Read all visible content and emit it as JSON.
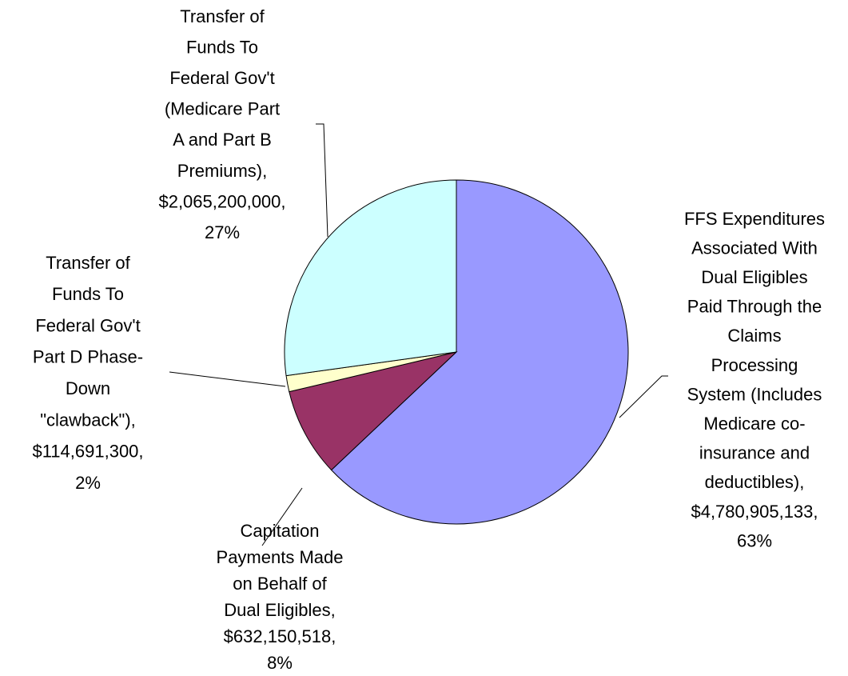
{
  "chart_data": {
    "type": "pie",
    "categories": [
      [
        "FFS Expenditures",
        "Associated With",
        "Dual Eligibles",
        "Paid Through the",
        "Claims",
        "Processing",
        "System (Includes",
        "Medicare co-",
        "insurance and",
        "deductibles),"
      ],
      [
        "Capitation",
        "Payments Made",
        "on Behalf of",
        "Dual Eligibles,"
      ],
      [
        "Transfer of",
        "Funds To",
        "Federal Gov't",
        "Part D Phase-",
        "Down",
        "\"clawback\"),"
      ],
      [
        "Transfer of",
        "Funds To",
        "Federal Gov't",
        "(Medicare Part",
        "A and Part B",
        "Premiums),"
      ]
    ],
    "values": [
      4780905133,
      632150518,
      114691300,
      2065200000
    ],
    "value_labels": [
      "$4,780,905,133,",
      "$632,150,518,",
      "$114,691,300,",
      "$2,065,200,000,"
    ],
    "percentages": [
      63,
      8,
      2,
      27
    ],
    "percentage_labels": [
      "63%",
      "8%",
      "2%",
      "27%"
    ],
    "colors": [
      "#9999ff",
      "#993366",
      "#ffffcc",
      "#ccffff"
    ]
  }
}
